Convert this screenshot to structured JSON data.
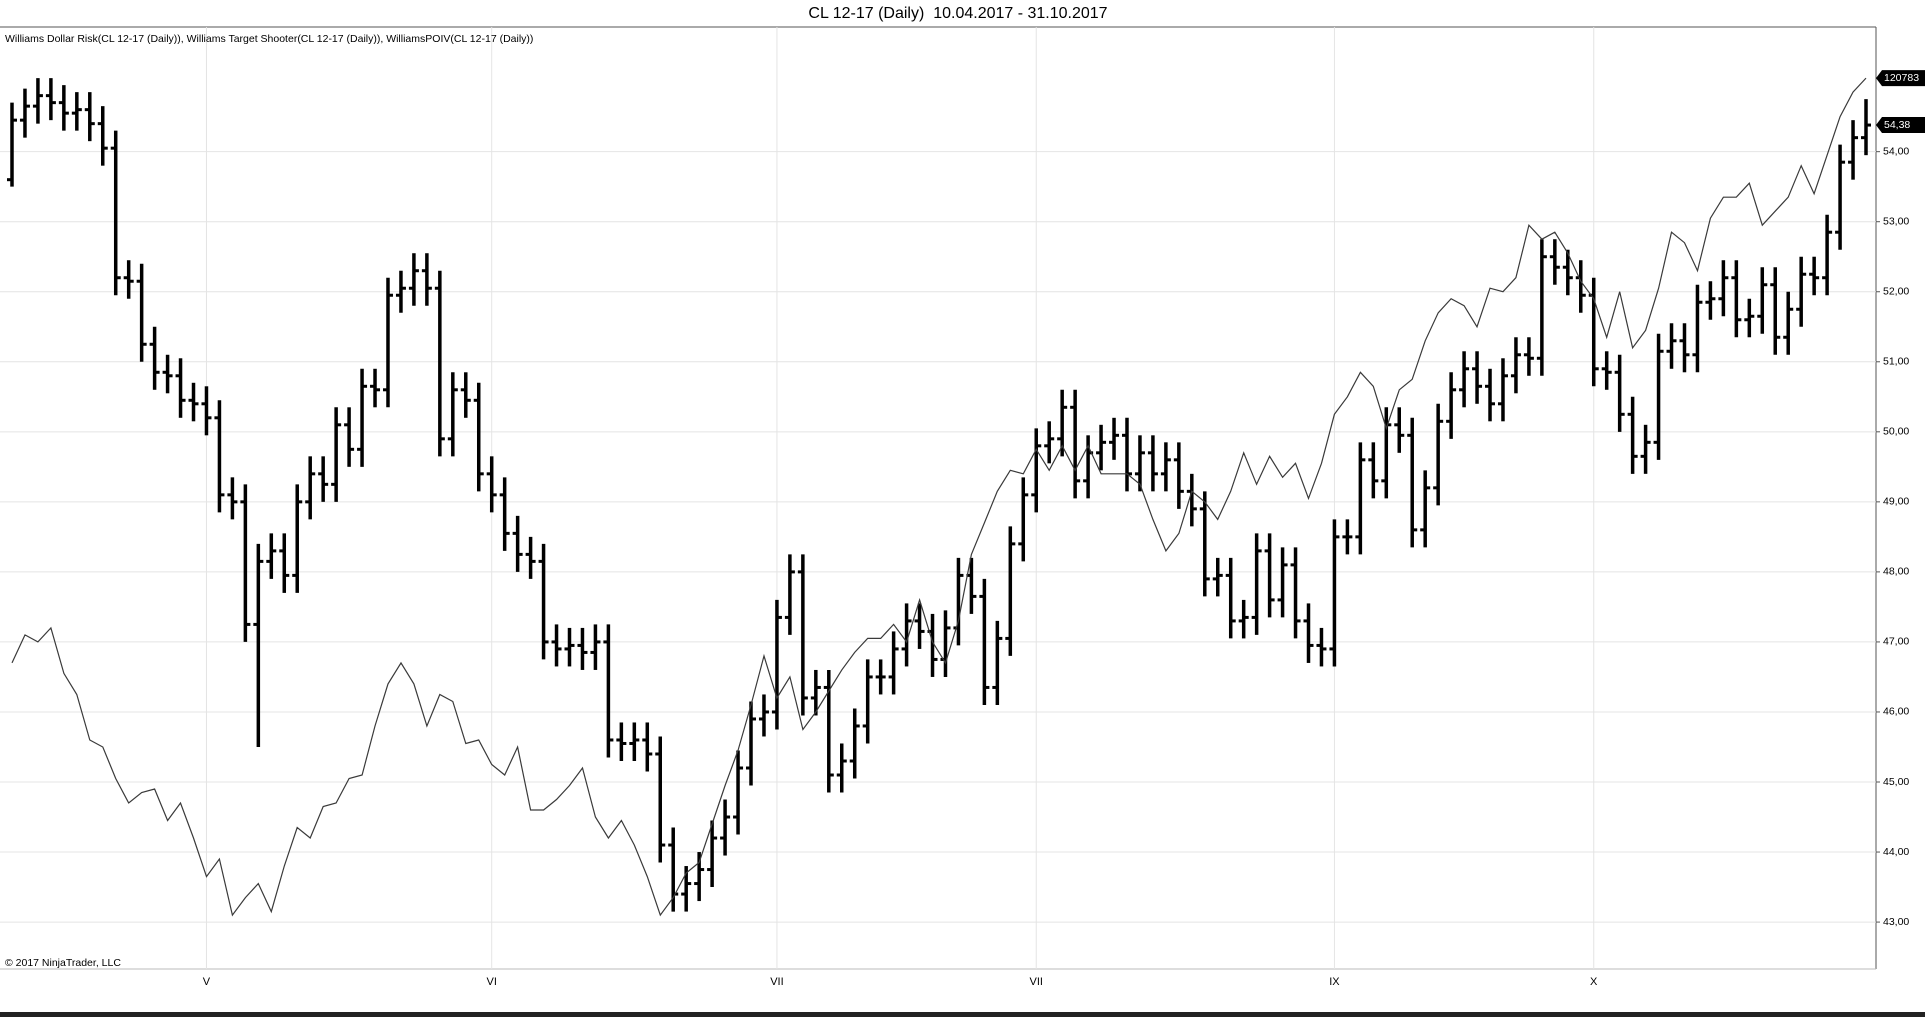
{
  "chart_data": {
    "type": "ohlc",
    "title": "CL 12-17 (Daily)  10.04.2017 - 31.10.2017",
    "indicator_legend": "Williams Dollar Risk(CL 12-17 (Daily)), Williams Target Shooter(CL 12-17 (Daily)), WilliamsPOIV(CL 12-17 (Daily))",
    "copyright": "© 2017 NinjaTrader, LLC",
    "last_price_label": "54,38",
    "overlay_last_label": "120783",
    "bar_color": "#000000",
    "grid": true,
    "ylim": [
      42.33,
      55.78
    ],
    "yticks": [
      {
        "value": 43,
        "label": "43,00"
      },
      {
        "value": 44,
        "label": "44,00"
      },
      {
        "value": 45,
        "label": "45,00"
      },
      {
        "value": 46,
        "label": "46,00"
      },
      {
        "value": 47,
        "label": "47,00"
      },
      {
        "value": 48,
        "label": "48,00"
      },
      {
        "value": 49,
        "label": "49,00"
      },
      {
        "value": 50,
        "label": "50,00"
      },
      {
        "value": 51,
        "label": "51,00"
      },
      {
        "value": 52,
        "label": "52,00"
      },
      {
        "value": 53,
        "label": "53,00"
      },
      {
        "value": 54,
        "label": "54,00"
      }
    ],
    "categories": [
      null,
      null,
      null,
      null,
      null,
      null,
      null,
      null,
      null,
      null,
      null,
      null,
      null,
      null,
      null,
      "V",
      null,
      null,
      null,
      null,
      null,
      null,
      null,
      null,
      null,
      null,
      null,
      null,
      null,
      null,
      null,
      null,
      null,
      null,
      null,
      null,
      null,
      "VI",
      null,
      null,
      null,
      null,
      null,
      null,
      null,
      null,
      null,
      null,
      null,
      null,
      null,
      null,
      null,
      null,
      null,
      null,
      null,
      null,
      null,
      "VII",
      null,
      null,
      null,
      null,
      null,
      null,
      null,
      null,
      null,
      null,
      null,
      null,
      null,
      null,
      null,
      null,
      null,
      null,
      null,
      "VII",
      null,
      null,
      null,
      null,
      null,
      null,
      null,
      null,
      null,
      null,
      null,
      null,
      null,
      null,
      null,
      null,
      null,
      null,
      null,
      null,
      null,
      null,
      "IX",
      null,
      null,
      null,
      null,
      null,
      null,
      null,
      null,
      null,
      null,
      null,
      null,
      null,
      null,
      null,
      null,
      null,
      null,
      null,
      "X",
      null,
      null,
      null,
      null,
      null,
      null,
      null,
      null,
      null,
      null,
      null,
      null,
      null,
      null,
      null,
      null,
      null,
      null,
      null,
      null,
      null
    ],
    "ohlc": [
      [
        53.6,
        54.7,
        53.5,
        54.45
      ],
      [
        54.45,
        54.9,
        54.2,
        54.65
      ],
      [
        54.65,
        55.05,
        54.4,
        54.8
      ],
      [
        54.8,
        55.05,
        54.45,
        54.7
      ],
      [
        54.7,
        54.95,
        54.3,
        54.55
      ],
      [
        54.55,
        54.85,
        54.3,
        54.6
      ],
      [
        54.6,
        54.85,
        54.15,
        54.4
      ],
      [
        54.4,
        54.65,
        53.8,
        54.05
      ],
      [
        54.05,
        54.3,
        51.95,
        52.2
      ],
      [
        52.2,
        52.45,
        51.9,
        52.15
      ],
      [
        52.15,
        52.4,
        51.0,
        51.25
      ],
      [
        51.25,
        51.5,
        50.6,
        50.85
      ],
      [
        50.85,
        51.1,
        50.55,
        50.8
      ],
      [
        50.8,
        51.05,
        50.2,
        50.45
      ],
      [
        50.45,
        50.7,
        50.15,
        50.4
      ],
      [
        50.4,
        50.65,
        49.95,
        50.2
      ],
      [
        50.2,
        50.45,
        48.85,
        49.1
      ],
      [
        49.1,
        49.35,
        48.75,
        49.0
      ],
      [
        49.0,
        49.25,
        47.0,
        47.25
      ],
      [
        47.25,
        48.4,
        45.5,
        48.15
      ],
      [
        48.15,
        48.55,
        47.9,
        48.3
      ],
      [
        48.3,
        48.55,
        47.7,
        47.95
      ],
      [
        47.95,
        49.25,
        47.7,
        49.0
      ],
      [
        49.0,
        49.65,
        48.75,
        49.4
      ],
      [
        49.4,
        49.65,
        49.0,
        49.25
      ],
      [
        49.25,
        50.35,
        49.0,
        50.1
      ],
      [
        50.1,
        50.35,
        49.5,
        49.75
      ],
      [
        49.75,
        50.9,
        49.5,
        50.65
      ],
      [
        50.65,
        50.9,
        50.35,
        50.6
      ],
      [
        50.6,
        52.2,
        50.35,
        51.95
      ],
      [
        51.95,
        52.3,
        51.7,
        52.05
      ],
      [
        52.05,
        52.55,
        51.8,
        52.3
      ],
      [
        52.3,
        52.55,
        51.8,
        52.05
      ],
      [
        52.05,
        52.3,
        49.65,
        49.9
      ],
      [
        49.9,
        50.85,
        49.65,
        50.6
      ],
      [
        50.6,
        50.85,
        50.2,
        50.45
      ],
      [
        50.45,
        50.7,
        49.15,
        49.4
      ],
      [
        49.4,
        49.65,
        48.85,
        49.1
      ],
      [
        49.1,
        49.35,
        48.3,
        48.55
      ],
      [
        48.55,
        48.8,
        48.0,
        48.25
      ],
      [
        48.25,
        48.5,
        47.9,
        48.15
      ],
      [
        48.15,
        48.4,
        46.75,
        47.0
      ],
      [
        47.0,
        47.25,
        46.65,
        46.9
      ],
      [
        46.9,
        47.2,
        46.65,
        46.95
      ],
      [
        46.95,
        47.2,
        46.6,
        46.85
      ],
      [
        46.85,
        47.25,
        46.6,
        47.0
      ],
      [
        47.0,
        47.25,
        45.35,
        45.6
      ],
      [
        45.6,
        45.85,
        45.3,
        45.55
      ],
      [
        45.55,
        45.85,
        45.3,
        45.6
      ],
      [
        45.6,
        45.85,
        45.15,
        45.4
      ],
      [
        45.4,
        45.65,
        43.85,
        44.1
      ],
      [
        44.1,
        44.35,
        43.15,
        43.4
      ],
      [
        43.4,
        43.8,
        43.15,
        43.55
      ],
      [
        43.55,
        44.0,
        43.3,
        43.75
      ],
      [
        43.75,
        44.45,
        43.5,
        44.2
      ],
      [
        44.2,
        44.75,
        43.95,
        44.5
      ],
      [
        44.5,
        45.45,
        44.25,
        45.2
      ],
      [
        45.2,
        46.15,
        44.95,
        45.9
      ],
      [
        45.9,
        46.25,
        45.65,
        46.0
      ],
      [
        46.0,
        47.6,
        45.75,
        47.35
      ],
      [
        47.35,
        48.25,
        47.1,
        48.0
      ],
      [
        48.0,
        48.25,
        45.95,
        46.2
      ],
      [
        46.2,
        46.6,
        45.95,
        46.35
      ],
      [
        46.35,
        46.6,
        44.85,
        45.1
      ],
      [
        45.1,
        45.55,
        44.85,
        45.3
      ],
      [
        45.3,
        46.05,
        45.05,
        45.8
      ],
      [
        45.8,
        46.75,
        45.55,
        46.5
      ],
      [
        46.5,
        46.75,
        46.25,
        46.5
      ],
      [
        46.5,
        47.15,
        46.25,
        46.9
      ],
      [
        46.9,
        47.55,
        46.65,
        47.3
      ],
      [
        47.3,
        47.55,
        46.9,
        47.15
      ],
      [
        47.15,
        47.4,
        46.5,
        46.75
      ],
      [
        46.75,
        47.45,
        46.5,
        47.2
      ],
      [
        47.2,
        48.2,
        46.95,
        47.95
      ],
      [
        47.95,
        48.2,
        47.4,
        47.65
      ],
      [
        47.65,
        47.9,
        46.1,
        46.35
      ],
      [
        46.35,
        47.3,
        46.1,
        47.05
      ],
      [
        47.05,
        48.65,
        46.8,
        48.4
      ],
      [
        48.4,
        49.35,
        48.15,
        49.1
      ],
      [
        49.1,
        50.05,
        48.85,
        49.8
      ],
      [
        49.8,
        50.15,
        49.55,
        49.9
      ],
      [
        49.9,
        50.6,
        49.65,
        50.35
      ],
      [
        50.35,
        50.6,
        49.05,
        49.3
      ],
      [
        49.3,
        49.95,
        49.05,
        49.7
      ],
      [
        49.7,
        50.1,
        49.45,
        49.85
      ],
      [
        49.85,
        50.2,
        49.6,
        49.95
      ],
      [
        49.95,
        50.2,
        49.15,
        49.4
      ],
      [
        49.4,
        49.95,
        49.15,
        49.7
      ],
      [
        49.7,
        49.95,
        49.15,
        49.4
      ],
      [
        49.4,
        49.85,
        49.15,
        49.6
      ],
      [
        49.6,
        49.85,
        48.9,
        49.15
      ],
      [
        49.15,
        49.4,
        48.65,
        48.9
      ],
      [
        48.9,
        49.15,
        47.65,
        47.9
      ],
      [
        47.9,
        48.2,
        47.65,
        47.95
      ],
      [
        47.95,
        48.2,
        47.05,
        47.3
      ],
      [
        47.3,
        47.6,
        47.05,
        47.35
      ],
      [
        47.35,
        48.55,
        47.1,
        48.3
      ],
      [
        48.3,
        48.55,
        47.35,
        47.6
      ],
      [
        47.6,
        48.35,
        47.35,
        48.1
      ],
      [
        48.1,
        48.35,
        47.05,
        47.3
      ],
      [
        47.3,
        47.55,
        46.7,
        46.95
      ],
      [
        46.95,
        47.2,
        46.65,
        46.9
      ],
      [
        46.9,
        48.75,
        46.65,
        48.5
      ],
      [
        48.5,
        48.75,
        48.25,
        48.5
      ],
      [
        48.5,
        49.85,
        48.25,
        49.6
      ],
      [
        49.6,
        49.85,
        49.05,
        49.3
      ],
      [
        49.3,
        50.35,
        49.05,
        50.1
      ],
      [
        50.1,
        50.35,
        49.7,
        49.95
      ],
      [
        49.95,
        50.2,
        48.35,
        48.6
      ],
      [
        48.6,
        49.45,
        48.35,
        49.2
      ],
      [
        49.2,
        50.4,
        48.95,
        50.15
      ],
      [
        50.15,
        50.85,
        49.9,
        50.6
      ],
      [
        50.6,
        51.15,
        50.35,
        50.9
      ],
      [
        50.9,
        51.15,
        50.4,
        50.65
      ],
      [
        50.65,
        50.9,
        50.15,
        50.4
      ],
      [
        50.4,
        51.05,
        50.15,
        50.8
      ],
      [
        50.8,
        51.35,
        50.55,
        51.1
      ],
      [
        51.1,
        51.35,
        50.8,
        51.05
      ],
      [
        51.05,
        52.75,
        50.8,
        52.5
      ],
      [
        52.5,
        52.75,
        52.1,
        52.35
      ],
      [
        52.35,
        52.6,
        51.95,
        52.2
      ],
      [
        52.2,
        52.45,
        51.7,
        51.95
      ],
      [
        51.95,
        52.2,
        50.65,
        50.9
      ],
      [
        50.9,
        51.15,
        50.6,
        50.85
      ],
      [
        50.85,
        51.1,
        50.0,
        50.25
      ],
      [
        50.25,
        50.5,
        49.4,
        49.65
      ],
      [
        49.65,
        50.1,
        49.4,
        49.85
      ],
      [
        49.85,
        51.4,
        49.6,
        51.15
      ],
      [
        51.15,
        51.55,
        50.9,
        51.3
      ],
      [
        51.3,
        51.55,
        50.85,
        51.1
      ],
      [
        51.1,
        52.1,
        50.85,
        51.85
      ],
      [
        51.85,
        52.15,
        51.6,
        51.9
      ],
      [
        51.9,
        52.45,
        51.65,
        52.2
      ],
      [
        52.2,
        52.45,
        51.35,
        51.6
      ],
      [
        51.6,
        51.9,
        51.35,
        51.65
      ],
      [
        51.65,
        52.35,
        51.4,
        52.1
      ],
      [
        52.1,
        52.35,
        51.1,
        51.35
      ],
      [
        51.35,
        52.0,
        51.1,
        51.75
      ],
      [
        51.75,
        52.5,
        51.5,
        52.25
      ],
      [
        52.25,
        52.5,
        51.95,
        52.2
      ],
      [
        52.2,
        53.1,
        51.95,
        52.85
      ],
      [
        52.85,
        54.1,
        52.6,
        53.85
      ],
      [
        53.85,
        54.45,
        53.6,
        54.2
      ],
      [
        54.2,
        54.75,
        53.95,
        54.38
      ]
    ],
    "overlay_line": {
      "color": "#3a3a3a",
      "values": [
        46.7,
        47.1,
        47.0,
        47.2,
        46.55,
        46.25,
        45.6,
        45.5,
        45.05,
        44.7,
        44.85,
        44.9,
        44.45,
        44.7,
        44.2,
        43.65,
        43.9,
        43.1,
        43.35,
        43.55,
        43.15,
        43.8,
        44.35,
        44.2,
        44.65,
        44.7,
        45.05,
        45.1,
        45.8,
        46.4,
        46.7,
        46.4,
        45.8,
        46.25,
        46.15,
        45.55,
        45.6,
        45.25,
        45.1,
        45.5,
        44.6,
        44.6,
        44.75,
        44.95,
        45.2,
        44.5,
        44.2,
        44.45,
        44.1,
        43.65,
        43.1,
        43.35,
        43.7,
        43.85,
        44.4,
        44.95,
        45.45,
        46.1,
        46.8,
        46.2,
        46.5,
        45.75,
        46.0,
        46.3,
        46.6,
        46.85,
        47.05,
        47.05,
        47.25,
        47.0,
        47.6,
        47.0,
        46.7,
        47.3,
        48.25,
        48.7,
        49.15,
        49.45,
        49.4,
        49.75,
        49.45,
        49.8,
        49.45,
        49.8,
        49.4,
        49.4,
        49.4,
        49.25,
        48.75,
        48.3,
        48.55,
        49.15,
        49.0,
        48.75,
        49.15,
        49.7,
        49.25,
        49.65,
        49.35,
        49.55,
        49.05,
        49.55,
        50.25,
        50.5,
        50.85,
        50.65,
        50.05,
        50.6,
        50.75,
        51.3,
        51.7,
        51.9,
        51.8,
        51.5,
        52.05,
        52.0,
        52.2,
        52.95,
        52.75,
        52.85,
        52.55,
        52.15,
        51.9,
        51.35,
        52.0,
        51.2,
        51.45,
        52.05,
        52.85,
        52.7,
        52.3,
        53.05,
        53.35,
        53.35,
        53.55,
        52.95,
        53.15,
        53.35,
        53.8,
        53.4,
        53.95,
        54.5,
        54.85,
        55.05
      ]
    }
  }
}
